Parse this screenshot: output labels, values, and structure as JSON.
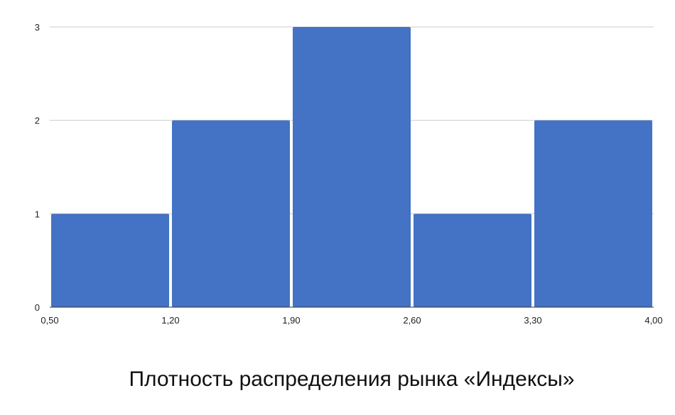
{
  "chart_data": {
    "type": "bar",
    "title": "Плотность распределения рынка «Индексы»",
    "bins": [
      {
        "x0": 0.5,
        "x1": 1.2,
        "value": 1
      },
      {
        "x0": 1.2,
        "x1": 1.9,
        "value": 2
      },
      {
        "x0": 1.9,
        "x1": 2.6,
        "value": 3
      },
      {
        "x0": 2.6,
        "x1": 3.3,
        "value": 1
      },
      {
        "x0": 3.3,
        "x1": 4.0,
        "value": 2
      }
    ],
    "values": [
      1,
      2,
      3,
      1,
      2
    ],
    "x_ticks": [
      "0,50",
      "1,20",
      "1,90",
      "2,60",
      "3,30",
      "4,00"
    ],
    "y_ticks": [
      "0",
      "1",
      "2",
      "3"
    ],
    "xlim": [
      0.5,
      4.0
    ],
    "ylim": [
      0,
      3
    ],
    "grid": true,
    "colors": {
      "bar": "#4472c4",
      "grid": "#cccccc",
      "axis": "#333333"
    }
  }
}
